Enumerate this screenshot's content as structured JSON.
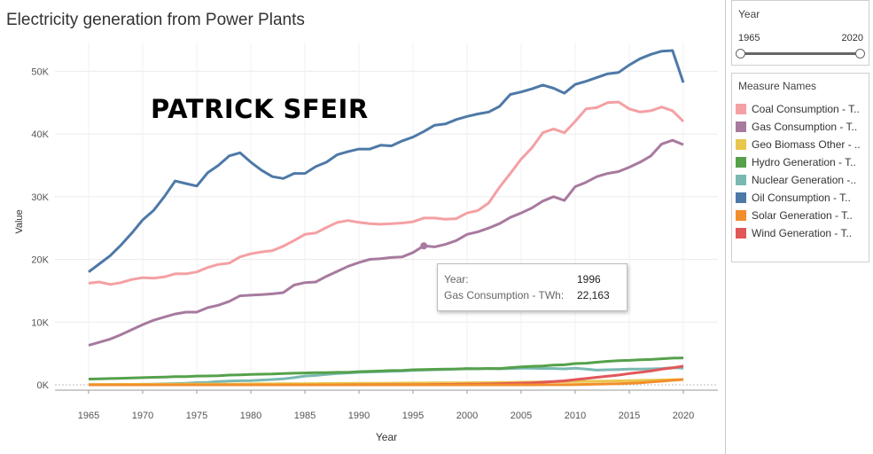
{
  "title": "Electricity generation from Power Plants",
  "watermark": "PATRICK SFEIR",
  "year_filter": {
    "title": "Year",
    "min": "1965",
    "max": "2020"
  },
  "legend": {
    "title": "Measure Names"
  },
  "tooltip": {
    "year_label": "Year:",
    "year_value": "1996",
    "measure_label": "Gas Consumption - TWh:",
    "measure_value": "22,163"
  },
  "colors": {
    "Coal Consumption - T..": "#f4a0a4",
    "Gas Consumption - T..": "#a77a9f",
    "Geo Biomass Other - ..": "#e9c64d",
    "Hydro Generation - T..": "#55a14b",
    "Nuclear Generation -..": "#79b9b2",
    "Oil Consumption - T..": "#4e79a7",
    "Solar Generation - T..": "#f28e2b",
    "Wind Generation - T..": "#e15759"
  },
  "chart_data": {
    "type": "line",
    "title": "Electricity generation from Power Plants",
    "xlabel": "Year",
    "ylabel": "Value",
    "xlim": [
      1965,
      2020
    ],
    "ylim": [
      0,
      55000
    ],
    "x_ticks": [
      1965,
      1970,
      1975,
      1980,
      1985,
      1990,
      1995,
      2000,
      2005,
      2010,
      2015,
      2020
    ],
    "y_ticks": [
      0,
      10000,
      20000,
      30000,
      40000,
      50000
    ],
    "y_tick_labels": [
      "0K",
      "10K",
      "20K",
      "30K",
      "40K",
      "50K"
    ],
    "grid": true,
    "legend_position": "right",
    "x": [
      1965,
      1966,
      1967,
      1968,
      1969,
      1970,
      1971,
      1972,
      1973,
      1974,
      1975,
      1976,
      1977,
      1978,
      1979,
      1980,
      1981,
      1982,
      1983,
      1984,
      1985,
      1986,
      1987,
      1988,
      1989,
      1990,
      1991,
      1992,
      1993,
      1994,
      1995,
      1996,
      1997,
      1998,
      1999,
      2000,
      2001,
      2002,
      2003,
      2004,
      2005,
      2006,
      2007,
      2008,
      2009,
      2010,
      2011,
      2012,
      2013,
      2014,
      2015,
      2016,
      2017,
      2018,
      2019,
      2020
    ],
    "series": [
      {
        "name": "Coal Consumption - T..",
        "values": [
          16200,
          16400,
          16000,
          16300,
          16800,
          17100,
          17000,
          17200,
          17700,
          17700,
          18000,
          18700,
          19200,
          19400,
          20400,
          20900,
          21200,
          21400,
          22100,
          23000,
          24000,
          24200,
          25100,
          25900,
          26200,
          25900,
          25700,
          25600,
          25700,
          25800,
          26000,
          26600,
          26600,
          26400,
          26500,
          27400,
          27800,
          29000,
          31500,
          33700,
          36000,
          37800,
          40200,
          40800,
          40200,
          42000,
          44000,
          44200,
          45000,
          45100,
          44000,
          43500,
          43700,
          44300,
          43700,
          42000
        ]
      },
      {
        "name": "Gas Consumption - T..",
        "values": [
          6300,
          6800,
          7300,
          8000,
          8800,
          9600,
          10300,
          10800,
          11300,
          11600,
          11600,
          12300,
          12700,
          13300,
          14200,
          14300,
          14400,
          14500,
          14700,
          15900,
          16300,
          16400,
          17300,
          18100,
          18900,
          19500,
          20000,
          20100,
          20300,
          20400,
          21100,
          22163,
          22000,
          22400,
          23000,
          24000,
          24400,
          25000,
          25700,
          26700,
          27400,
          28200,
          29300,
          30000,
          29400,
          31600,
          32300,
          33200,
          33700,
          34000,
          34700,
          35500,
          36500,
          38400,
          39000,
          38300
        ]
      },
      {
        "name": "Geo Biomass Other - ..",
        "values": [
          50,
          55,
          60,
          65,
          70,
          75,
          80,
          85,
          90,
          95,
          100,
          110,
          115,
          120,
          130,
          140,
          150,
          160,
          170,
          180,
          190,
          200,
          210,
          220,
          230,
          240,
          250,
          260,
          270,
          280,
          290,
          300,
          310,
          320,
          330,
          340,
          350,
          360,
          380,
          400,
          420,
          440,
          460,
          480,
          500,
          520,
          550,
          580,
          610,
          640,
          670,
          700,
          740,
          780,
          820,
          850
        ]
      },
      {
        "name": "Hydro Generation - T..",
        "values": [
          920,
          960,
          1000,
          1050,
          1100,
          1150,
          1200,
          1250,
          1300,
          1320,
          1400,
          1420,
          1450,
          1550,
          1600,
          1650,
          1700,
          1720,
          1800,
          1850,
          1900,
          1930,
          1950,
          1990,
          2000,
          2100,
          2150,
          2200,
          2280,
          2300,
          2400,
          2450,
          2480,
          2500,
          2530,
          2600,
          2580,
          2620,
          2600,
          2750,
          2850,
          2950,
          3000,
          3150,
          3200,
          3400,
          3450,
          3600,
          3750,
          3850,
          3900,
          4000,
          4050,
          4150,
          4250,
          4300
        ]
      },
      {
        "name": "Nuclear Generation -..",
        "values": [
          10,
          20,
          30,
          40,
          50,
          80,
          110,
          150,
          200,
          250,
          360,
          400,
          520,
          600,
          650,
          680,
          760,
          850,
          950,
          1150,
          1400,
          1500,
          1650,
          1800,
          1900,
          2000,
          2050,
          2100,
          2150,
          2200,
          2300,
          2350,
          2400,
          2450,
          2500,
          2550,
          2550,
          2600,
          2550,
          2600,
          2650,
          2650,
          2600,
          2600,
          2550,
          2650,
          2500,
          2350,
          2400,
          2450,
          2500,
          2500,
          2550,
          2600,
          2750,
          2650
        ]
      },
      {
        "name": "Oil Consumption - T..",
        "values": [
          18000,
          19300,
          20600,
          22300,
          24200,
          26300,
          27800,
          30000,
          32500,
          32100,
          31700,
          33800,
          35000,
          36500,
          37000,
          35500,
          34200,
          33200,
          32900,
          33700,
          33700,
          34800,
          35500,
          36700,
          37200,
          37600,
          37600,
          38200,
          38100,
          38900,
          39500,
          40400,
          41400,
          41600,
          42300,
          42800,
          43200,
          43500,
          44400,
          46300,
          46700,
          47200,
          47800,
          47300,
          46500,
          47900,
          48400,
          49000,
          49600,
          49800,
          51000,
          52000,
          52700,
          53200,
          53300,
          48200
        ]
      },
      {
        "name": "Solar Generation - T..",
        "values": [
          0,
          0,
          0,
          0,
          0,
          0,
          0,
          0,
          0,
          0,
          0,
          0,
          0,
          0,
          0,
          0,
          0,
          0,
          0,
          0,
          0,
          0,
          0,
          0,
          0,
          0,
          0,
          0,
          0,
          0,
          0,
          0,
          0,
          0,
          0,
          0,
          0,
          0,
          0,
          0,
          0,
          5,
          10,
          15,
          20,
          35,
          65,
          100,
          140,
          190,
          250,
          330,
          450,
          580,
          720,
          850
        ]
      },
      {
        "name": "Wind Generation - T..",
        "values": [
          0,
          0,
          0,
          0,
          0,
          0,
          0,
          0,
          0,
          0,
          0,
          0,
          0,
          0,
          0,
          0,
          0,
          0,
          0,
          0,
          0,
          0,
          0,
          5,
          10,
          15,
          20,
          25,
          30,
          35,
          40,
          45,
          55,
          70,
          85,
          100,
          120,
          140,
          180,
          220,
          270,
          320,
          420,
          530,
          630,
          830,
          1000,
          1200,
          1380,
          1550,
          1800,
          2000,
          2200,
          2500,
          2700,
          3000
        ]
      }
    ],
    "highlight": {
      "series": "Gas Consumption - T..",
      "x": 1996,
      "y": 22163
    }
  }
}
